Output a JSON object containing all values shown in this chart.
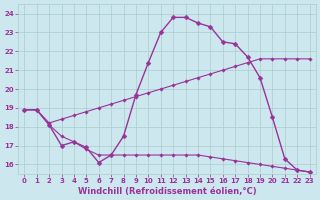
{
  "xlabel": "Windchill (Refroidissement éolien,°C)",
  "bg_color": "#cce8ee",
  "plot_bg": "#cce8ee",
  "line_color": "#993399",
  "grid_color": "#aacccc",
  "xlabel_color": "#993399",
  "tick_color": "#993399",
  "xlim": [
    -0.5,
    23.5
  ],
  "ylim": [
    15.5,
    24.5
  ],
  "yticks": [
    16,
    17,
    18,
    19,
    20,
    21,
    22,
    23,
    24
  ],
  "xticks": [
    0,
    1,
    2,
    3,
    4,
    5,
    6,
    7,
    8,
    9,
    10,
    11,
    12,
    13,
    14,
    15,
    16,
    17,
    18,
    19,
    20,
    21,
    22,
    23
  ],
  "l1x": [
    0,
    1,
    2,
    3,
    4,
    5,
    6,
    7,
    8,
    9,
    10,
    11,
    12,
    13,
    14,
    15,
    16,
    17,
    18,
    19,
    20,
    21,
    22,
    23
  ],
  "l1y": [
    18.9,
    18.9,
    18.1,
    17.0,
    17.2,
    16.9,
    16.1,
    16.5,
    17.5,
    19.7,
    21.4,
    23.0,
    23.8,
    23.8,
    23.5,
    23.3,
    22.5,
    22.4,
    21.7,
    20.6,
    18.5,
    16.3,
    15.7,
    15.6
  ],
  "l2x": [
    0,
    1,
    2,
    3,
    4,
    5,
    6,
    7,
    8,
    9,
    10,
    11,
    12,
    13,
    14,
    15,
    16,
    17,
    18,
    19,
    20,
    21,
    22,
    23
  ],
  "l2y": [
    18.9,
    18.9,
    18.2,
    18.4,
    18.6,
    18.8,
    19.0,
    19.2,
    19.4,
    19.6,
    19.8,
    20.0,
    20.2,
    20.4,
    20.6,
    20.8,
    21.0,
    21.2,
    21.4,
    21.6,
    21.6,
    21.6,
    21.6,
    21.6
  ],
  "l3x": [
    0,
    1,
    2,
    3,
    4,
    5,
    6,
    7,
    8,
    9,
    10,
    11,
    12,
    13,
    14,
    15,
    16,
    17,
    18,
    19,
    20,
    21,
    22,
    23
  ],
  "l3y": [
    18.9,
    18.9,
    18.1,
    17.5,
    17.2,
    16.8,
    16.5,
    16.5,
    16.5,
    16.5,
    16.5,
    16.5,
    16.5,
    16.5,
    16.5,
    16.4,
    16.3,
    16.2,
    16.1,
    16.0,
    15.9,
    15.8,
    15.7,
    15.6
  ],
  "tick_fontsize": 5.0,
  "xlabel_fontsize": 6.0
}
